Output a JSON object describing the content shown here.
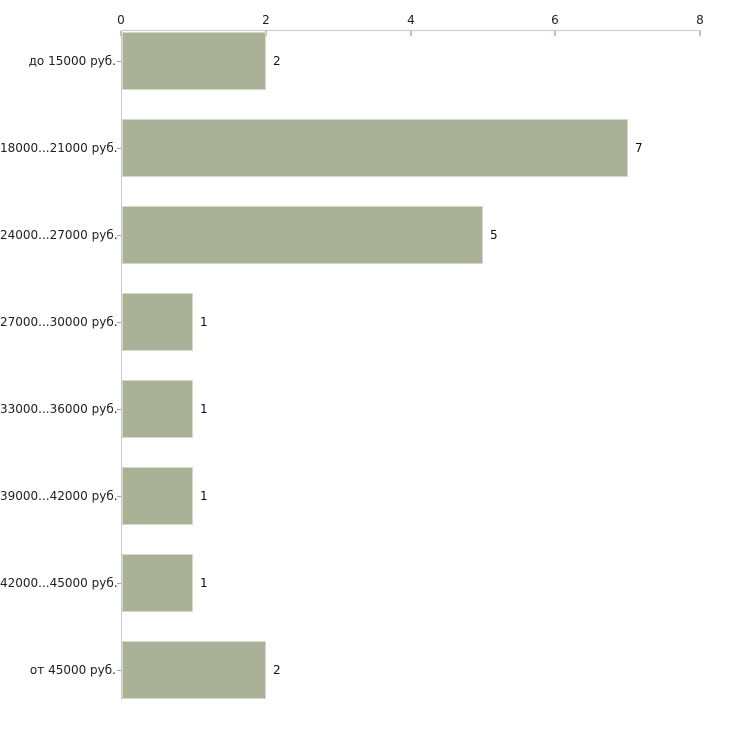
{
  "chart_data": {
    "type": "bar",
    "orientation": "horizontal",
    "title": "",
    "xlabel": "",
    "ylabel": "",
    "categories": [
      "до 15000 руб.",
      "18000...21000 руб.",
      "24000...27000 руб.",
      "27000...30000 руб.",
      "33000...36000 руб.",
      "39000...42000 руб.",
      "42000...45000 руб.",
      "от 45000 руб."
    ],
    "values": [
      2,
      7,
      5,
      1,
      1,
      1,
      1,
      2
    ],
    "data_labels": [
      "2",
      "7",
      "5",
      "1",
      "1",
      "1",
      "1",
      "2"
    ],
    "xlim": [
      0,
      8
    ],
    "x_ticks": [
      0,
      2,
      4,
      6,
      8
    ],
    "x_tick_labels": [
      "0",
      "2",
      "4",
      "6",
      "8"
    ],
    "grid": false,
    "legend": false,
    "axis_position": "top",
    "colors": {
      "bar_fill": "#a9b196",
      "bar_border": "#d6d9ca",
      "axis_line": "#c9c9c9",
      "x_tick_mark": "#c2c49e",
      "category_tick_mark": "#a5a59d",
      "text": "#1f1f1f",
      "background": "#ffffff"
    }
  }
}
